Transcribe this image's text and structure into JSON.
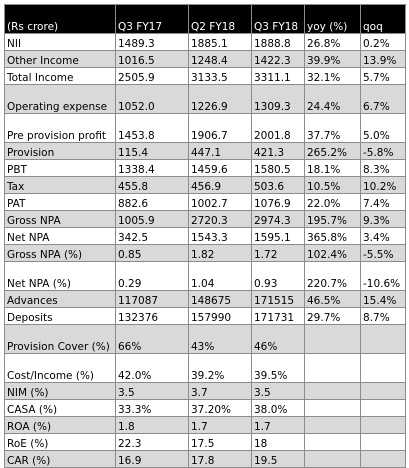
{
  "table": {
    "header": {
      "label": "(Rs crore)",
      "q3fy17": "Q3 FY17",
      "q2fy18": "Q2 FY18",
      "q3fy18": "Q3 FY18",
      "yoy": "yoy (%)",
      "qoq": "qoq"
    },
    "rows": [
      {
        "label": "NII",
        "q3fy17": "1489.3",
        "q2fy18": "1885.1",
        "q3fy18": "1888.8",
        "yoy": "26.8%",
        "qoq": "0.2%"
      },
      {
        "label": "Other Income",
        "q3fy17": "1016.5",
        "q2fy18": "1248.4",
        "q3fy18": "1422.3",
        "yoy": "39.9%",
        "qoq": "13.9%"
      },
      {
        "label": "Total Income",
        "q3fy17": "2505.9",
        "q2fy18": "3133.5",
        "q3fy18": "3311.1",
        "yoy": "32.1%",
        "qoq": "5.7%"
      },
      {
        "label": "Operating expense",
        "q3fy17": "1052.0",
        "q2fy18": "1226.9",
        "q3fy18": "1309.3",
        "yoy": "24.4%",
        "qoq": "6.7%"
      },
      {
        "label": "Pre provision profit",
        "q3fy17": "1453.8",
        "q2fy18": "1906.7",
        "q3fy18": "2001.8",
        "yoy": "37.7%",
        "qoq": "5.0%"
      },
      {
        "label": "Provision",
        "q3fy17": "115.4",
        "q2fy18": "447.1",
        "q3fy18": "421.3",
        "yoy": "265.2%",
        "qoq": "-5.8%"
      },
      {
        "label": "PBT",
        "q3fy17": "1338.4",
        "q2fy18": "1459.6",
        "q3fy18": "1580.5",
        "yoy": "18.1%",
        "qoq": "8.3%"
      },
      {
        "label": "Tax",
        "q3fy17": "455.8",
        "q2fy18": "456.9",
        "q3fy18": "503.6",
        "yoy": "10.5%",
        "qoq": "10.2%"
      },
      {
        "label": "PAT",
        "q3fy17": "882.6",
        "q2fy18": "1002.7",
        "q3fy18": "1076.9",
        "yoy": "22.0%",
        "qoq": "7.4%"
      },
      {
        "label": "Gross NPA",
        "q3fy17": "1005.9",
        "q2fy18": "2720.3",
        "q3fy18": "2974.3",
        "yoy": "195.7%",
        "qoq": "9.3%"
      },
      {
        "label": "Net NPA",
        "q3fy17": "342.5",
        "q2fy18": "1543.3",
        "q3fy18": "1595.1",
        "yoy": "365.8%",
        "qoq": "3.4%"
      },
      {
        "label": "Gross NPA (%)",
        "q3fy17": "0.85",
        "q2fy18": "1.82",
        "q3fy18": "1.72",
        "yoy": "102.4%",
        "qoq": "-5.5%"
      },
      {
        "label": "Net NPA (%)",
        "q3fy17": "0.29",
        "q2fy18": "1.04",
        "q3fy18": "0.93",
        "yoy": "220.7%",
        "qoq": "-10.6%"
      },
      {
        "label": "Advances",
        "q3fy17": "117087",
        "q2fy18": "148675",
        "q3fy18": "171515",
        "yoy": "46.5%",
        "qoq": "15.4%"
      },
      {
        "label": "Deposits",
        "q3fy17": "132376",
        "q2fy18": "157990",
        "q3fy18": "171731",
        "yoy": "29.7%",
        "qoq": "8.7%"
      },
      {
        "label": "Provision Cover (%)",
        "q3fy17": "66%",
        "q2fy18": "43%",
        "q3fy18": "46%",
        "yoy": "",
        "qoq": ""
      },
      {
        "label": "Cost/Income (%)",
        "q3fy17": "42.0%",
        "q2fy18": "39.2%",
        "q3fy18": "39.5%",
        "yoy": "",
        "qoq": ""
      },
      {
        "label": "NIM (%)",
        "q3fy17": "3.5",
        "q2fy18": "3.7",
        "q3fy18": "3.5",
        "yoy": "",
        "qoq": ""
      },
      {
        "label": "CASA (%)",
        "q3fy17": "33.3%",
        "q2fy18": "37.20%",
        "q3fy18": "38.0%",
        "yoy": "",
        "qoq": ""
      },
      {
        "label": "ROA (%)",
        "q3fy17": "1.8",
        "q2fy18": "1.7",
        "q3fy18": "1.7",
        "yoy": "",
        "qoq": ""
      },
      {
        "label": "RoE (%)",
        "q3fy17": "22.3",
        "q2fy18": "17.5",
        "q3fy18": "18",
        "yoy": "",
        "qoq": ""
      },
      {
        "label": "CAR (%)",
        "q3fy17": "16.9",
        "q2fy18": "17.8",
        "q3fy18": "19.5",
        "yoy": "",
        "qoq": ""
      }
    ]
  }
}
